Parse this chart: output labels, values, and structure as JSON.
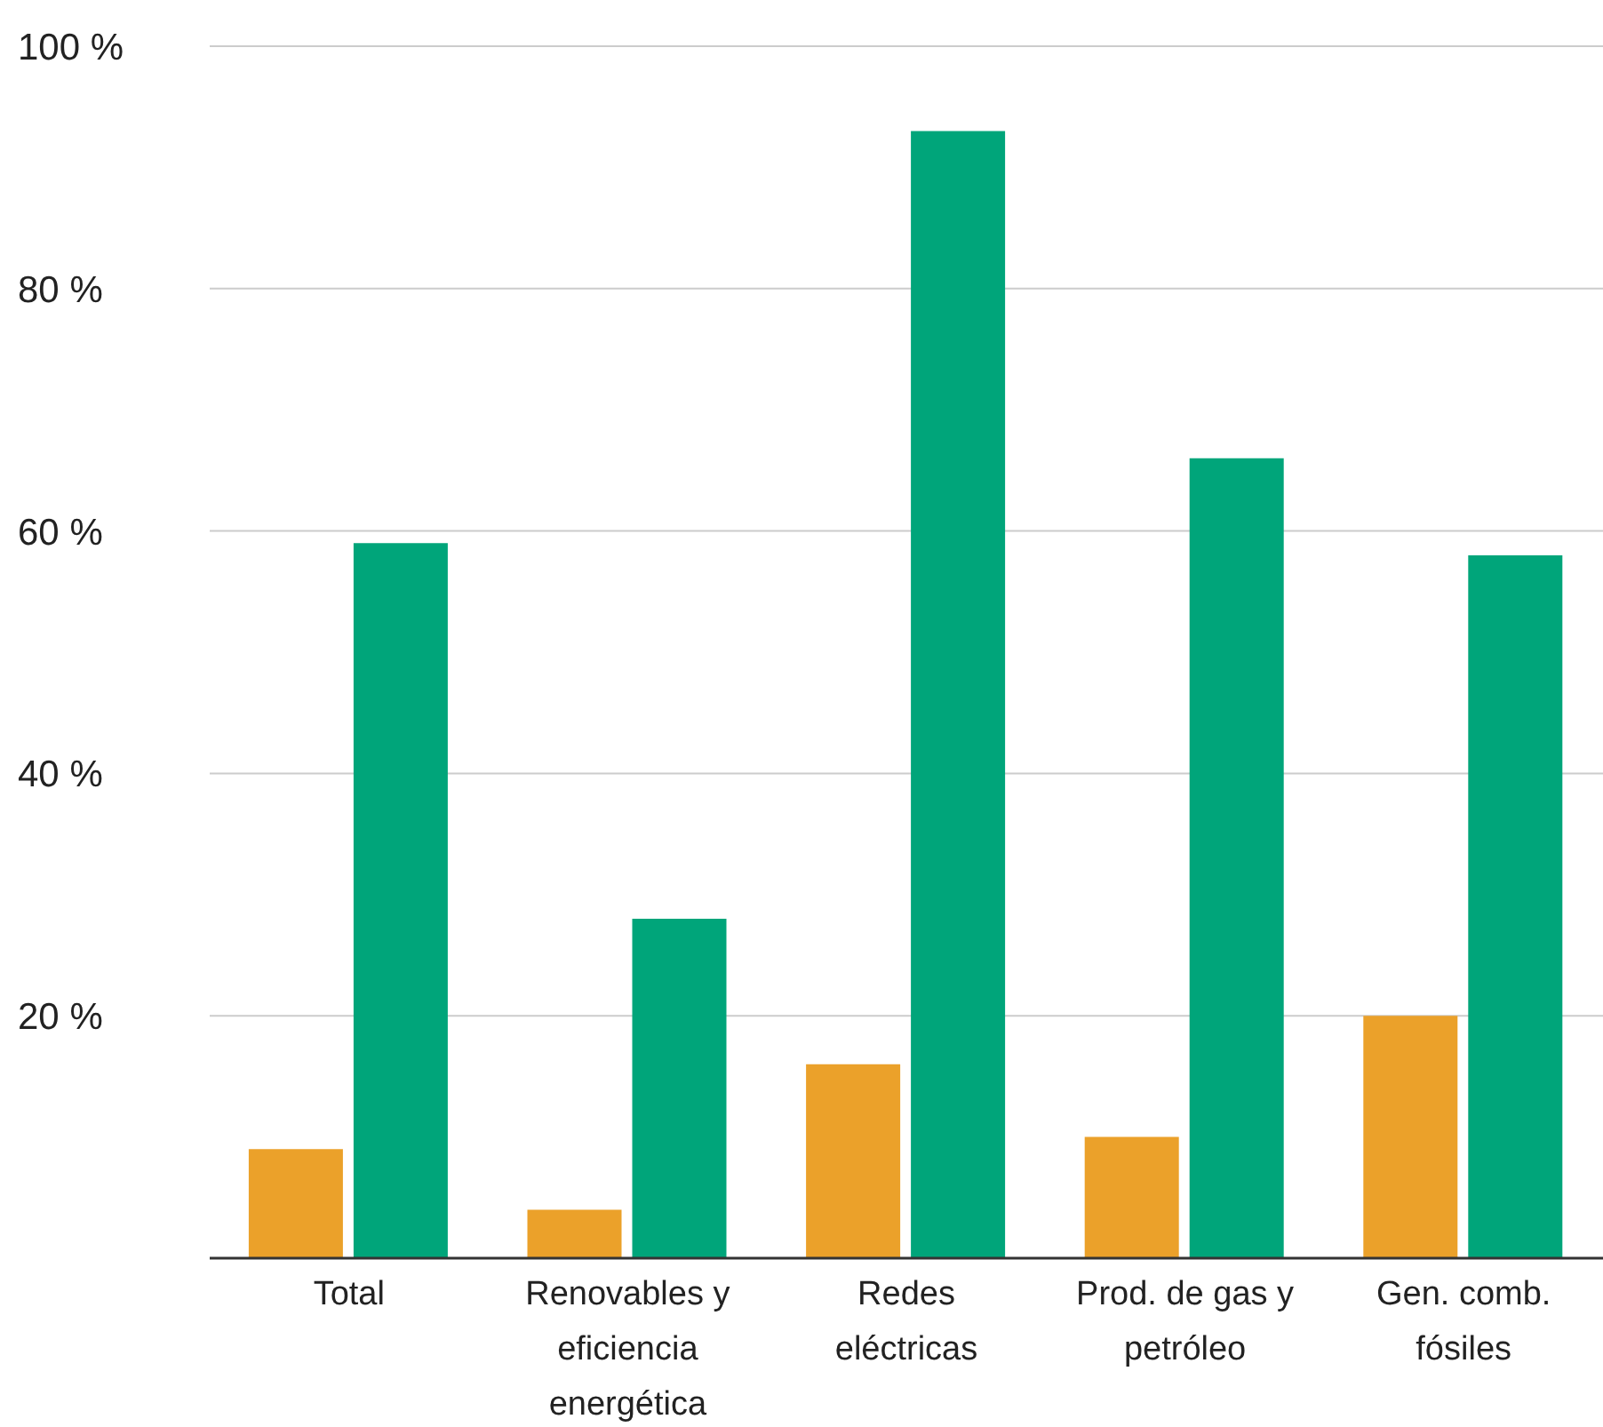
{
  "chart_data": {
    "type": "bar",
    "categories": [
      "Total",
      "Renovables y eficiencia energética",
      "Redes eléctricas",
      "Prod. de gas y petróleo",
      "Gen. comb. fósiles"
    ],
    "series": [
      {
        "color": "#eba12a",
        "values": [
          9,
          4,
          16,
          10,
          20
        ]
      },
      {
        "color": "#00a57a",
        "values": [
          59,
          28,
          93,
          66,
          58
        ]
      }
    ],
    "ylim": [
      0,
      100
    ],
    "yticks": [
      {
        "value": 20,
        "label": "20 %"
      },
      {
        "value": 40,
        "label": "40 %"
      },
      {
        "value": 60,
        "label": "60 %"
      },
      {
        "value": 80,
        "label": "80 %"
      },
      {
        "value": 100,
        "label": "100 %"
      }
    ],
    "grid": "y",
    "legend": false
  }
}
